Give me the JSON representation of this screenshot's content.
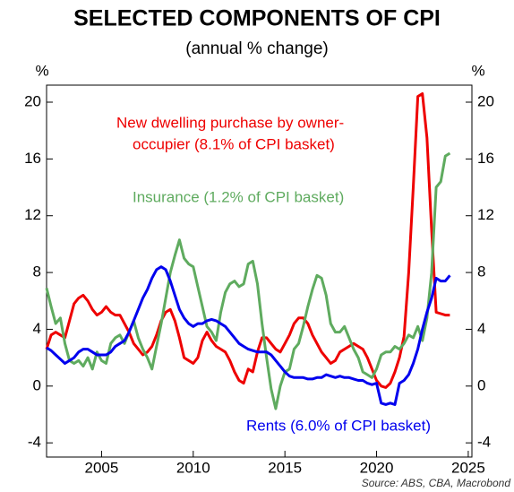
{
  "chart_data": {
    "type": "line",
    "title": "SELECTED COMPONENTS OF CPI",
    "subtitle": "(annual % change)",
    "y_label": "%",
    "y2_label": "%",
    "source": "Source: ABS, CBA, Macrobond",
    "annotations": [
      {
        "text": "New dwelling purchase by owner-",
        "color": "#ee0000"
      },
      {
        "text": "occupier (8.1% of CPI basket)",
        "color": "#ee0000"
      },
      {
        "text": "Insurance (1.2% of CPI basket)",
        "color": "#5fab5f"
      },
      {
        "text": "Rents (6.0% of CPI basket)",
        "color": "#0000ee"
      }
    ],
    "x": [
      2002,
      2002.25,
      2002.5,
      2002.75,
      2003,
      2003.25,
      2003.5,
      2003.75,
      2004,
      2004.25,
      2004.5,
      2004.75,
      2005,
      2005.25,
      2005.5,
      2005.75,
      2006,
      2006.25,
      2006.5,
      2006.75,
      2007,
      2007.25,
      2007.5,
      2007.75,
      2008,
      2008.25,
      2008.5,
      2008.75,
      2009,
      2009.25,
      2009.5,
      2009.75,
      2010,
      2010.25,
      2010.5,
      2010.75,
      2011,
      2011.25,
      2011.5,
      2011.75,
      2012,
      2012.25,
      2012.5,
      2012.75,
      2013,
      2013.25,
      2013.5,
      2013.75,
      2014,
      2014.25,
      2014.5,
      2014.75,
      2015,
      2015.25,
      2015.5,
      2015.75,
      2016,
      2016.25,
      2016.5,
      2016.75,
      2017,
      2017.25,
      2017.5,
      2017.75,
      2018,
      2018.25,
      2018.5,
      2018.75,
      2019,
      2019.25,
      2019.5,
      2019.75,
      2020,
      2020.25,
      2020.5,
      2020.75,
      2021,
      2021.25,
      2021.5,
      2021.75,
      2022,
      2022.25,
      2022.5,
      2022.75,
      2023,
      2023.25,
      2023.5,
      2023.75,
      2024
    ],
    "series": [
      {
        "name": "New dwelling purchase by owner-occupier",
        "color": "#ee0000",
        "values": [
          2.6,
          3.6,
          3.8,
          3.6,
          3.4,
          4.6,
          5.8,
          6.2,
          6.4,
          6.0,
          5.4,
          5.0,
          5.2,
          5.6,
          5.2,
          5.0,
          5.0,
          4.4,
          3.8,
          3.0,
          2.6,
          2.2,
          2.4,
          2.8,
          3.6,
          4.6,
          5.2,
          5.4,
          4.6,
          3.4,
          2.0,
          1.8,
          1.6,
          2.0,
          3.2,
          3.8,
          3.2,
          2.8,
          2.6,
          2.4,
          1.8,
          1.0,
          0.4,
          0.2,
          1.2,
          1.0,
          2.4,
          3.4,
          3.4,
          3.0,
          2.6,
          2.4,
          3.0,
          3.6,
          4.4,
          4.8,
          4.8,
          4.4,
          3.6,
          3.0,
          2.4,
          2.0,
          1.6,
          1.8,
          2.4,
          2.6,
          2.8,
          3.0,
          2.8,
          2.6,
          2.0,
          1.2,
          0.4,
          0.0,
          -0.1,
          0.2,
          1.0,
          2.0,
          3.5,
          8.0,
          14.0,
          20.4,
          20.6,
          17.5,
          11.0,
          5.2,
          5.1,
          5.0,
          5.0
        ]
      },
      {
        "name": "Insurance",
        "color": "#5fab5f",
        "values": [
          6.9,
          5.6,
          4.4,
          4.8,
          3.0,
          1.8,
          1.6,
          1.8,
          1.4,
          2.0,
          1.2,
          2.4,
          1.8,
          1.6,
          3.0,
          3.4,
          3.6,
          3.0,
          3.8,
          4.6,
          3.4,
          2.6,
          2.0,
          1.2,
          2.8,
          4.4,
          6.2,
          8.0,
          9.2,
          10.3,
          9.0,
          8.6,
          8.4,
          7.0,
          5.6,
          4.2,
          3.8,
          3.2,
          5.2,
          6.6,
          7.2,
          7.4,
          7.0,
          7.2,
          8.6,
          8.8,
          7.2,
          4.4,
          2.0,
          -0.2,
          -1.6,
          0.0,
          1.0,
          1.2,
          2.6,
          3.0,
          4.2,
          5.6,
          6.8,
          7.8,
          7.6,
          6.4,
          4.4,
          3.8,
          3.8,
          4.2,
          3.4,
          2.6,
          2.0,
          1.0,
          0.8,
          0.6,
          1.2,
          2.2,
          2.4,
          2.4,
          2.8,
          2.6,
          3.0,
          3.6,
          3.4,
          4.2,
          3.2,
          4.8,
          8.0,
          14.0,
          14.4,
          16.2,
          16.4
        ]
      },
      {
        "name": "Rents",
        "color": "#0000ee",
        "values": [
          2.7,
          2.5,
          2.2,
          1.9,
          1.6,
          1.8,
          2.0,
          2.4,
          2.6,
          2.6,
          2.4,
          2.2,
          2.2,
          2.2,
          2.4,
          2.8,
          3.0,
          3.2,
          3.8,
          4.6,
          5.4,
          6.2,
          6.8,
          7.6,
          8.2,
          8.4,
          8.2,
          7.4,
          6.4,
          5.4,
          4.8,
          4.4,
          4.2,
          4.4,
          4.4,
          4.6,
          4.7,
          4.6,
          4.4,
          4.2,
          3.8,
          3.4,
          3.0,
          2.8,
          2.6,
          2.5,
          2.4,
          2.4,
          2.4,
          2.2,
          1.8,
          1.4,
          1.0,
          0.7,
          0.6,
          0.6,
          0.6,
          0.5,
          0.5,
          0.6,
          0.6,
          0.8,
          0.7,
          0.6,
          0.7,
          0.6,
          0.6,
          0.5,
          0.4,
          0.4,
          0.2,
          0.1,
          0.2,
          -1.2,
          -1.3,
          -1.2,
          -1.3,
          0.2,
          0.4,
          0.8,
          1.6,
          2.6,
          4.0,
          5.2,
          6.2,
          7.6,
          7.4,
          7.4,
          7.8
        ]
      }
    ],
    "xlim": [
      2002,
      2025.2
    ],
    "xticks": [
      2005,
      2010,
      2015,
      2020,
      2025
    ],
    "ylim": [
      -5,
      21.2
    ],
    "yticks": [
      -4,
      0,
      4,
      8,
      12,
      16,
      20
    ],
    "y2lim": [
      -5,
      21.2
    ],
    "y2ticks": [
      -4,
      0,
      4,
      8,
      12,
      16,
      20
    ]
  }
}
